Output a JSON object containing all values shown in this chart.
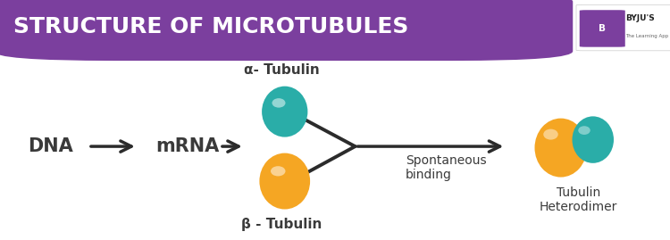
{
  "title": "STRUCTURE OF MICROTUBULES",
  "title_bg": "#7B3F9E",
  "title_fg": "#FFFFFF",
  "bg_color": "#FFFFFF",
  "alpha_color": "#2AADA8",
  "beta_color": "#F5A623",
  "alpha_label": "α- Tubulin",
  "beta_label": "β - Tubulin",
  "dna_label": "DNA",
  "mrna_label": "mRNA",
  "spontaneous_label": "Spontaneous\nbinding",
  "heterodimer_label": "Tubulin\nHeterodimer",
  "arrow_color": "#2B2B2B",
  "text_color": "#3A3A3A",
  "byju_purple": "#7B3F9E",
  "title_fontsize": 18,
  "body_fontsize": 11,
  "label_fontsize": 10
}
